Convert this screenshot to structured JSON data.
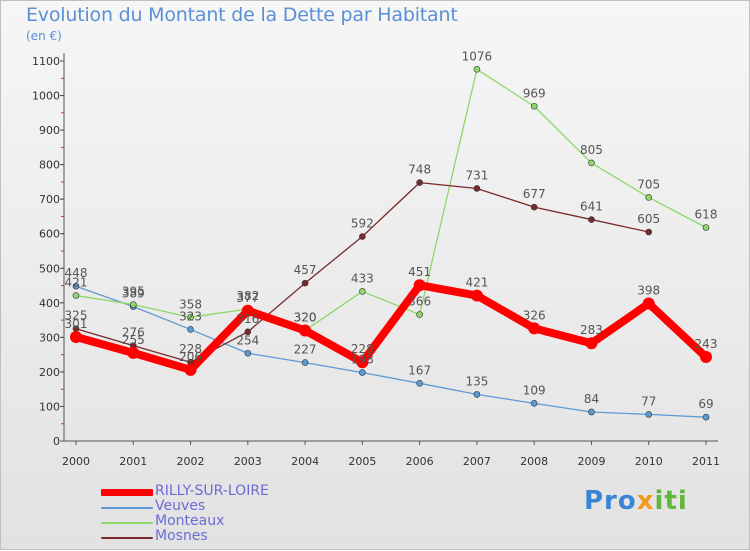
{
  "header": {
    "title": "Evolution du Montant de la Dette par Habitant",
    "unit": "(en €)"
  },
  "brand": {
    "part1": "Pro",
    "part2": "x",
    "part3": "iti"
  },
  "chart_data": {
    "type": "line",
    "title": "Evolution du Montant de la Dette par Habitant",
    "subtitle": "(en €)",
    "x": [
      "2000",
      "2001",
      "2002",
      "2003",
      "2004",
      "2005",
      "2006",
      "2007",
      "2008",
      "2009",
      "2010",
      "2011"
    ],
    "ylim": [
      0,
      1100
    ],
    "yticks": [
      0,
      100,
      200,
      300,
      400,
      500,
      600,
      700,
      800,
      900,
      1000,
      1100
    ],
    "grid": false,
    "legend_position": "bottom-left",
    "series": [
      {
        "name": "RILLY-SUR-LOIRE",
        "color": "#ff0000",
        "values": [
          301,
          255,
          206,
          377,
          320,
          228,
          451,
          421,
          326,
          283,
          398,
          243
        ]
      },
      {
        "name": "Veuves",
        "color": "#5b9bd5",
        "values": [
          448,
          389,
          323,
          254,
          227,
          198,
          167,
          135,
          109,
          84,
          77,
          69
        ]
      },
      {
        "name": "Monteaux",
        "color": "#8fd66b",
        "values": [
          421,
          395,
          358,
          382,
          320,
          433,
          366,
          1076,
          969,
          805,
          705,
          618
        ]
      },
      {
        "name": "Mosnes",
        "color": "#7a2a2a",
        "values": [
          325,
          276,
          228,
          316,
          457,
          592,
          748,
          731,
          677,
          641,
          605,
          null
        ]
      }
    ]
  }
}
